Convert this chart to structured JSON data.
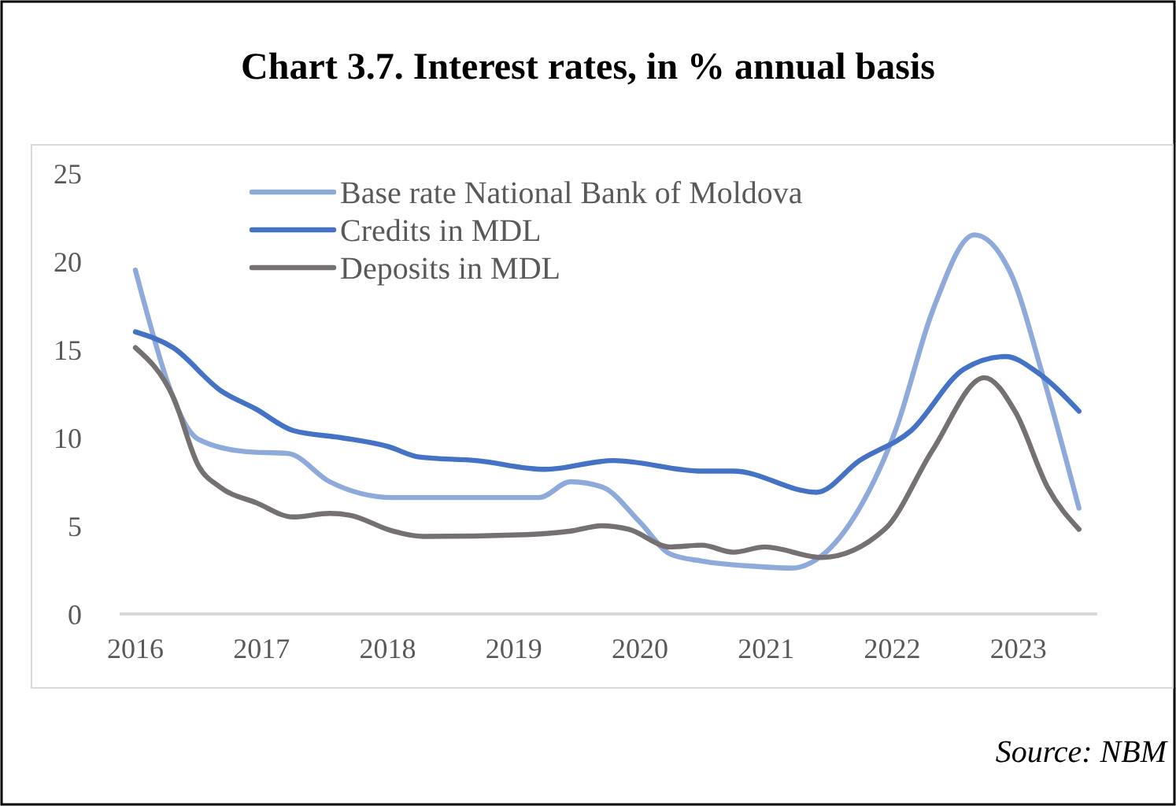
{
  "chart_data": {
    "type": "line",
    "title": "Chart 3.7. Interest rates, in % annual basis",
    "annotations": [
      "Source: NBM"
    ],
    "xlim": [
      2015.875,
      2023.625
    ],
    "xticks": [
      2016,
      2017,
      2018,
      2019,
      2020,
      2021,
      2022,
      2023
    ],
    "ylim": [
      0,
      25
    ],
    "yticks": [
      0,
      5,
      10,
      15,
      20,
      25
    ],
    "grid": false,
    "legend": "top",
    "marker": "none",
    "line_style": "solid",
    "series": [
      {
        "name": "Base rate National Bank of Moldova",
        "color": "#8eaadb",
        "x": [
          2016.0,
          2016.5,
          2016.88,
          2017.21,
          2017.54,
          2018.04,
          2019.2,
          2019.45,
          2019.7,
          2020.0,
          2020.24,
          2020.49,
          2020.91,
          2021.2,
          2021.44,
          2021.74,
          2022.03,
          2022.32,
          2022.65,
          2022.94,
          2023.19,
          2023.48
        ],
        "values": [
          19.5,
          9.9,
          9.2,
          9.1,
          7.5,
          6.6,
          6.6,
          7.5,
          7.2,
          5.2,
          3.4,
          3.0,
          2.7,
          2.6,
          3.3,
          6.0,
          10.5,
          17.2,
          21.5,
          19.3,
          13.6,
          6.0
        ]
      },
      {
        "name": "Credits in MDL",
        "color": "#4472c4",
        "x": [
          2016.0,
          2016.3,
          2016.67,
          2016.96,
          2017.25,
          2017.63,
          2018.0,
          2018.25,
          2018.7,
          2019.25,
          2019.79,
          2020.49,
          2020.74,
          2021.4,
          2021.74,
          2022.15,
          2022.57,
          2022.9,
          2023.15,
          2023.48
        ],
        "values": [
          16.0,
          15.1,
          12.7,
          11.6,
          10.4,
          10.0,
          9.5,
          8.9,
          8.7,
          8.2,
          8.7,
          8.1,
          8.1,
          6.9,
          8.7,
          10.4,
          13.9,
          14.6,
          13.7,
          11.5
        ]
      },
      {
        "name": "Deposits in MDL",
        "color": "#767171",
        "x": [
          2016.0,
          2016.3,
          2016.5,
          2016.67,
          2016.96,
          2017.25,
          2017.54,
          2017.7,
          2018.04,
          2018.28,
          2019.1,
          2019.45,
          2019.7,
          2019.91,
          2020.24,
          2020.49,
          2020.74,
          2020.99,
          2021.44,
          2021.94,
          2022.32,
          2022.73,
          2022.98,
          2023.23,
          2023.48
        ],
        "values": [
          15.1,
          12.3,
          8.4,
          7.2,
          6.3,
          5.5,
          5.7,
          5.6,
          4.7,
          4.4,
          4.5,
          4.7,
          5.0,
          4.8,
          3.8,
          3.9,
          3.5,
          3.8,
          3.2,
          4.8,
          9.3,
          13.4,
          11.4,
          7.2,
          4.8
        ]
      }
    ]
  }
}
